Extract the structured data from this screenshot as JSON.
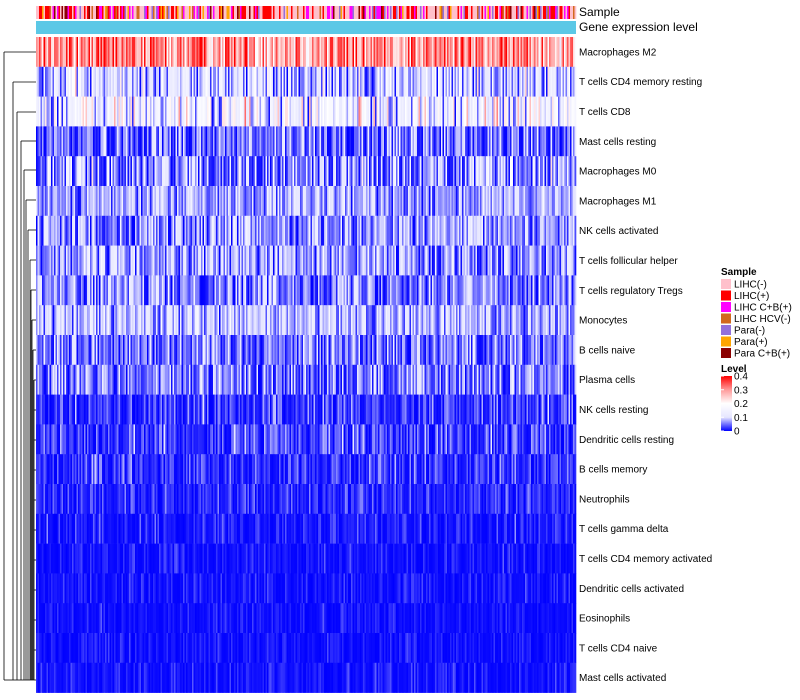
{
  "chart_data": {
    "type": "heatmap",
    "title": "",
    "annotations": [
      {
        "label": "Sample",
        "kind": "categorical"
      },
      {
        "label": "Gene expression level",
        "kind": "continuous",
        "color": "#5bc8e6"
      }
    ],
    "rows": [
      {
        "name": "Macrophages M2",
        "mean": 0.3,
        "sd": 0.07
      },
      {
        "name": "T cells CD4 memory resting",
        "mean": 0.1,
        "sd": 0.06
      },
      {
        "name": "T cells CD8",
        "mean": 0.14,
        "sd": 0.07
      },
      {
        "name": "Mast cells resting",
        "mean": 0.045,
        "sd": 0.045
      },
      {
        "name": "Macrophages M0",
        "mean": 0.06,
        "sd": 0.06
      },
      {
        "name": "Macrophages M1",
        "mean": 0.07,
        "sd": 0.035
      },
      {
        "name": "NK cells activated",
        "mean": 0.065,
        "sd": 0.04
      },
      {
        "name": "T cells follicular helper",
        "mean": 0.07,
        "sd": 0.04
      },
      {
        "name": "T cells regulatory  Tregs",
        "mean": 0.06,
        "sd": 0.04
      },
      {
        "name": "Monocytes",
        "mean": 0.08,
        "sd": 0.04
      },
      {
        "name": "B cells naive",
        "mean": 0.055,
        "sd": 0.04
      },
      {
        "name": "Plasma cells",
        "mean": 0.05,
        "sd": 0.04
      },
      {
        "name": "NK cells resting",
        "mean": 0.02,
        "sd": 0.03
      },
      {
        "name": "Dendritic cells resting",
        "mean": 0.025,
        "sd": 0.03
      },
      {
        "name": "B cells memory",
        "mean": 0.02,
        "sd": 0.025
      },
      {
        "name": "Neutrophils",
        "mean": 0.015,
        "sd": 0.02
      },
      {
        "name": "T cells gamma delta",
        "mean": 0.006,
        "sd": 0.02
      },
      {
        "name": "T cells CD4 memory activated",
        "mean": 0.005,
        "sd": 0.015
      },
      {
        "name": "Dendritic cells activated",
        "mean": 0.005,
        "sd": 0.015
      },
      {
        "name": "Eosinophils",
        "mean": 0.004,
        "sd": 0.012
      },
      {
        "name": "T cells CD4 naive",
        "mean": 0.004,
        "sd": 0.012
      },
      {
        "name": "Mast cells activated",
        "mean": 0.005,
        "sd": 0.015
      }
    ],
    "n_samples": 360,
    "sample_mix": [
      0.42,
      0.22,
      0.12,
      0.06,
      0.06,
      0.06,
      0.06
    ],
    "legend_sample": {
      "title": "Sample",
      "items": [
        {
          "label": "LIHC(-)",
          "color": "#ffc0cb"
        },
        {
          "label": "LIHC(+)",
          "color": "#ff0000"
        },
        {
          "label": "LIHC C+B(+)",
          "color": "#ff00ff"
        },
        {
          "label": "LIHC HCV(-)",
          "color": "#d2691e"
        },
        {
          "label": "Para(-)",
          "color": "#9370db"
        },
        {
          "label": "Para(+)",
          "color": "#ffa500"
        },
        {
          "label": "Para C+B(+)",
          "color": "#8b0000"
        }
      ]
    },
    "legend_level": {
      "title": "Level",
      "range": [
        0,
        0.4
      ],
      "ticks": [
        {
          "value": 0.4,
          "label": "0.4"
        },
        {
          "value": 0.3,
          "label": "0.3"
        },
        {
          "value": 0.2,
          "label": "0.2"
        },
        {
          "value": 0.1,
          "label": "0.1"
        },
        {
          "value": 0,
          "label": "0"
        }
      ],
      "stops": [
        {
          "value": 0,
          "color": "#0000ff"
        },
        {
          "value": 0.1,
          "color": "#e6e6ff"
        },
        {
          "value": 0.2,
          "color": "#ffffff"
        },
        {
          "value": 0.3,
          "color": "#ff9a9a"
        },
        {
          "value": 0.4,
          "color": "#ff0000"
        }
      ]
    }
  }
}
